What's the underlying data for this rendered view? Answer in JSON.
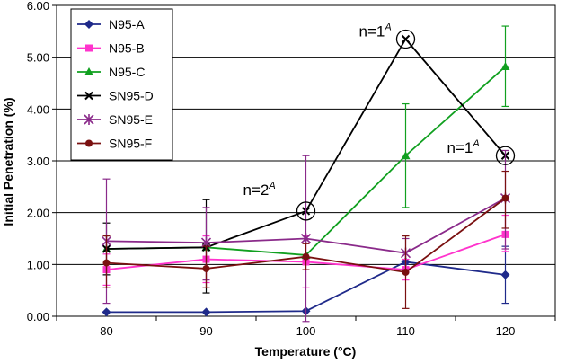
{
  "chart_data": {
    "type": "line",
    "title": "",
    "xlabel": "Temperature (°C)",
    "ylabel": "Initial Penetration (%)",
    "x": [
      80,
      90,
      100,
      110,
      120
    ],
    "ylim": [
      0,
      6
    ],
    "yticks": [
      "0.00",
      "1.00",
      "2.00",
      "3.00",
      "4.00",
      "5.00",
      "6.00"
    ],
    "grid": "horizontal",
    "legend_position": "top-left",
    "series": [
      {
        "name": "N95-A",
        "color": "#1f2a8a",
        "marker": "diamond",
        "values": [
          0.08,
          0.08,
          0.1,
          1.05,
          0.8
        ],
        "err_low": [
          0.08,
          0.08,
          0.1,
          1.0,
          0.25
        ],
        "err_high": [
          0.08,
          0.08,
          0.1,
          1.1,
          1.35
        ]
      },
      {
        "name": "N95-B",
        "color": "#ff33cc",
        "marker": "square",
        "values": [
          0.9,
          1.1,
          1.05,
          0.9,
          1.58
        ],
        "err_low": [
          0.6,
          0.65,
          0.55,
          0.7,
          1.25
        ],
        "err_high": [
          1.2,
          1.55,
          1.55,
          1.1,
          1.95
        ]
      },
      {
        "name": "N95-C",
        "color": "#11a020",
        "marker": "triangle",
        "values": [
          1.3,
          1.33,
          1.18,
          3.1,
          4.82
        ],
        "err_low": [
          1.3,
          1.33,
          1.18,
          2.1,
          4.05
        ],
        "err_high": [
          1.3,
          1.33,
          1.18,
          4.1,
          5.6
        ]
      },
      {
        "name": "SN95-D",
        "color": "#000000",
        "marker": "x",
        "values": [
          1.3,
          1.33,
          2.03,
          5.35,
          3.1
        ],
        "err_low": [
          0.8,
          0.45,
          2.03,
          5.35,
          3.1
        ],
        "err_high": [
          1.8,
          2.25,
          2.03,
          5.35,
          3.1
        ]
      },
      {
        "name": "SN95-E",
        "color": "#8a2a8a",
        "marker": "asterisk",
        "values": [
          1.45,
          1.42,
          1.5,
          1.22,
          2.28
        ],
        "err_low": [
          0.25,
          0.7,
          -0.1,
          0.9,
          1.3
        ],
        "err_high": [
          2.65,
          2.1,
          3.1,
          1.5,
          3.2
        ]
      },
      {
        "name": "SN95-F",
        "color": "#7a1010",
        "marker": "circle",
        "values": [
          1.03,
          0.92,
          1.15,
          0.85,
          2.28
        ],
        "err_low": [
          0.55,
          0.55,
          0.9,
          0.15,
          1.7
        ],
        "err_high": [
          1.55,
          1.35,
          1.4,
          1.55,
          2.8
        ]
      }
    ],
    "annotations": [
      {
        "label": "n=2",
        "sup": "A",
        "x": 100,
        "y": 2.03
      },
      {
        "label": "n=1",
        "sup": "A",
        "x": 110,
        "y": 5.35
      },
      {
        "label": "n=1",
        "sup": "A",
        "x": 120,
        "y": 3.1
      }
    ]
  }
}
